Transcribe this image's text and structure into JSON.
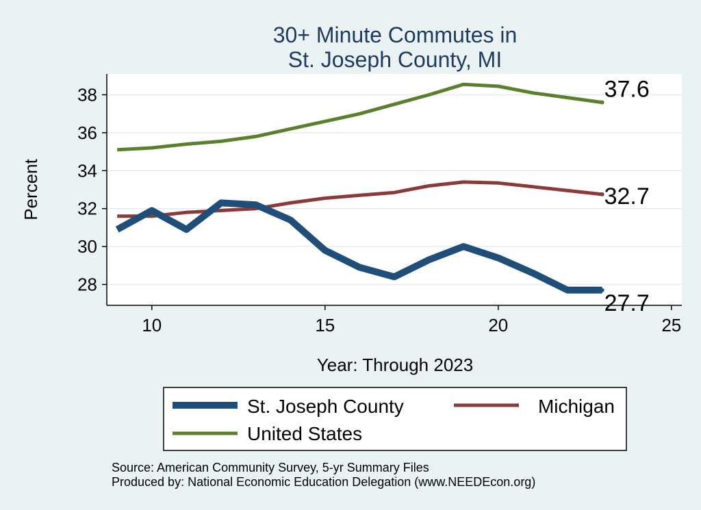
{
  "chart_data": {
    "type": "line",
    "title": [
      "30+ Minute Commutes in",
      "St. Joseph County, MI"
    ],
    "xlabel": "Year: Through 2023",
    "ylabel": "Percent",
    "xlim": [
      8.7,
      25.3
    ],
    "ylim": [
      26.9,
      39.1
    ],
    "xticks": [
      10,
      15,
      20,
      25
    ],
    "yticks": [
      28,
      30,
      32,
      34,
      36,
      38
    ],
    "grid": true,
    "legend_position": "bottom",
    "series": [
      {
        "name": "St. Joseph County",
        "color": "#1f4e79",
        "x": [
          9,
          10,
          11,
          12,
          13,
          14,
          15,
          16,
          17,
          18,
          19,
          20,
          21,
          22,
          23
        ],
        "y": [
          30.9,
          31.9,
          30.9,
          32.3,
          32.2,
          31.4,
          29.8,
          28.9,
          28.4,
          29.3,
          30.0,
          29.4,
          28.6,
          27.7,
          27.7
        ],
        "end_label": "27.7"
      },
      {
        "name": "Michigan",
        "color": "#8b3a3a",
        "x": [
          9,
          10,
          11,
          12,
          13,
          14,
          15,
          16,
          17,
          18,
          19,
          20,
          21,
          22,
          23
        ],
        "y": [
          31.6,
          31.6,
          31.8,
          31.9,
          32.0,
          32.3,
          32.55,
          32.7,
          32.85,
          33.2,
          33.4,
          33.35,
          33.15,
          32.95,
          32.75
        ],
        "end_label": "32.7"
      },
      {
        "name": "United States",
        "color": "#5b7f2d",
        "x": [
          9,
          10,
          11,
          12,
          13,
          14,
          15,
          16,
          17,
          18,
          19,
          20,
          21,
          22,
          23
        ],
        "y": [
          35.1,
          35.2,
          35.4,
          35.55,
          35.8,
          36.2,
          36.6,
          37.0,
          37.5,
          38.0,
          38.55,
          38.45,
          38.1,
          37.85,
          37.6
        ],
        "end_label": "37.6"
      }
    ]
  },
  "notes": [
    "Source: American Community Survey, 5-yr Summary Files",
    "Produced by: National Economic Education Delegation (www.NEEDEcon.org)"
  ]
}
